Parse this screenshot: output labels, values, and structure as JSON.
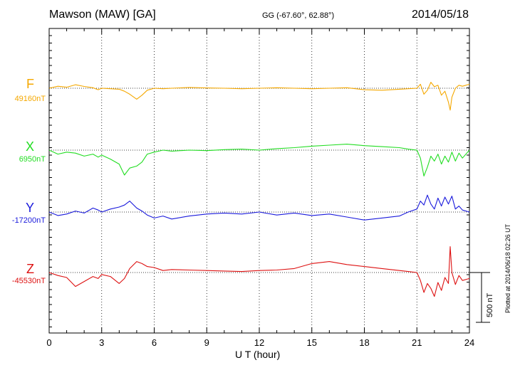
{
  "header": {
    "station": "Mawson (MAW)  [GA]",
    "coords": "GG (-67.60°,  62.88°)",
    "date": "2014/05/18"
  },
  "footer": {
    "xlabel": "U T (hour)",
    "plotted": "Plotted at 2014/06/18 02:26 UT",
    "scale_label": "500 nT"
  },
  "chart_data": {
    "type": "line",
    "title": "Mawson (MAW)  [GA]",
    "xlabel": "U T (hour)",
    "ylabel": "",
    "xlim": [
      0,
      24
    ],
    "xticks": [
      0,
      3,
      6,
      9,
      12,
      15,
      18,
      21,
      24
    ],
    "scale_bar_nT": 500,
    "grid": "dotted vertical lines every 3 hours; dotted baseline per component",
    "series": [
      {
        "name": "F",
        "baseline_label": "49160nT",
        "baseline_nT": 49160,
        "color": "#f5a800",
        "x": [
          0,
          0.5,
          1,
          1.5,
          2,
          2.5,
          2.8,
          3,
          3.5,
          4,
          4.3,
          4.6,
          5,
          5.3,
          5.6,
          6,
          6.5,
          7,
          8,
          9,
          10,
          11,
          12,
          13,
          14,
          15,
          16,
          17,
          18,
          19,
          20,
          20.5,
          21,
          21.2,
          21.4,
          21.6,
          21.8,
          22,
          22.2,
          22.4,
          22.6,
          22.8,
          22.9,
          23,
          23.2,
          23.4,
          23.6,
          24
        ],
        "y": [
          0,
          20,
          10,
          35,
          18,
          5,
          -15,
          0,
          -5,
          -10,
          -30,
          -60,
          -110,
          -70,
          -20,
          0,
          -5,
          0,
          8,
          3,
          0,
          -5,
          0,
          5,
          0,
          -5,
          0,
          5,
          -15,
          -20,
          -10,
          -5,
          0,
          40,
          -60,
          -20,
          60,
          15,
          30,
          -70,
          -30,
          -140,
          -220,
          -90,
          0,
          30,
          20,
          40
        ]
      },
      {
        "name": "X",
        "baseline_label": "6950nT",
        "baseline_nT": 6950,
        "color": "#22dd22",
        "x": [
          0,
          0.5,
          1,
          1.5,
          2,
          2.5,
          2.8,
          3,
          3.5,
          4,
          4.3,
          4.6,
          5,
          5.3,
          5.6,
          6,
          6.5,
          7,
          8,
          9,
          10,
          11,
          12,
          13,
          14,
          15,
          16,
          17,
          18,
          19,
          20,
          20.5,
          21,
          21.2,
          21.4,
          21.6,
          21.8,
          22,
          22.2,
          22.4,
          22.6,
          22.8,
          23,
          23.2,
          23.4,
          23.6,
          24
        ],
        "y": [
          0,
          -40,
          -20,
          -30,
          -60,
          -40,
          -70,
          -50,
          -90,
          -140,
          -250,
          -180,
          -160,
          -120,
          -40,
          -20,
          0,
          -10,
          0,
          -5,
          5,
          10,
          0,
          15,
          25,
          40,
          50,
          60,
          45,
          35,
          25,
          10,
          0,
          -80,
          -260,
          -170,
          -60,
          -110,
          -40,
          -140,
          -60,
          -120,
          -20,
          -110,
          -30,
          -80,
          0
        ]
      },
      {
        "name": "Y",
        "baseline_label": "-17200nT",
        "baseline_nT": -17200,
        "color": "#1a1adc",
        "x": [
          0,
          0.5,
          1,
          1.5,
          2,
          2.5,
          2.8,
          3,
          3.5,
          4,
          4.3,
          4.6,
          5,
          5.3,
          5.6,
          6,
          6.5,
          7,
          8,
          9,
          10,
          11,
          12,
          13,
          14,
          15,
          16,
          17,
          18,
          19,
          20,
          20.5,
          21,
          21.2,
          21.4,
          21.6,
          21.8,
          22,
          22.2,
          22.4,
          22.6,
          22.8,
          23,
          23.2,
          23.4,
          23.6,
          24
        ],
        "y": [
          0,
          -35,
          -20,
          10,
          -10,
          40,
          20,
          0,
          30,
          50,
          70,
          110,
          40,
          10,
          -30,
          -60,
          -40,
          -70,
          -40,
          -20,
          -10,
          -20,
          0,
          -30,
          -10,
          -35,
          -20,
          -50,
          -80,
          -60,
          -40,
          0,
          30,
          110,
          70,
          170,
          80,
          30,
          140,
          60,
          150,
          80,
          160,
          30,
          60,
          20,
          0
        ]
      },
      {
        "name": "Z",
        "baseline_label": "-45530nT",
        "baseline_nT": -45530,
        "color": "#dd1111",
        "x": [
          0,
          0.5,
          1,
          1.5,
          2,
          2.5,
          2.8,
          3,
          3.5,
          4,
          4.3,
          4.6,
          5,
          5.3,
          5.6,
          6,
          6.5,
          7,
          8,
          9,
          10,
          11,
          12,
          13,
          14,
          15,
          16,
          17,
          18,
          19,
          20,
          20.5,
          21,
          21.2,
          21.4,
          21.6,
          21.8,
          22,
          22.2,
          22.4,
          22.6,
          22.8,
          22.9,
          23,
          23.2,
          23.4,
          23.6,
          24
        ],
        "y": [
          0,
          -30,
          -50,
          -140,
          -90,
          -40,
          -60,
          -20,
          -40,
          -110,
          -60,
          40,
          110,
          90,
          60,
          50,
          20,
          30,
          25,
          20,
          15,
          10,
          20,
          25,
          40,
          90,
          110,
          80,
          60,
          40,
          20,
          10,
          0,
          -80,
          -200,
          -110,
          -160,
          -240,
          -100,
          -180,
          -50,
          -110,
          260,
          0,
          -120,
          -30,
          -80,
          -60
        ]
      }
    ]
  }
}
